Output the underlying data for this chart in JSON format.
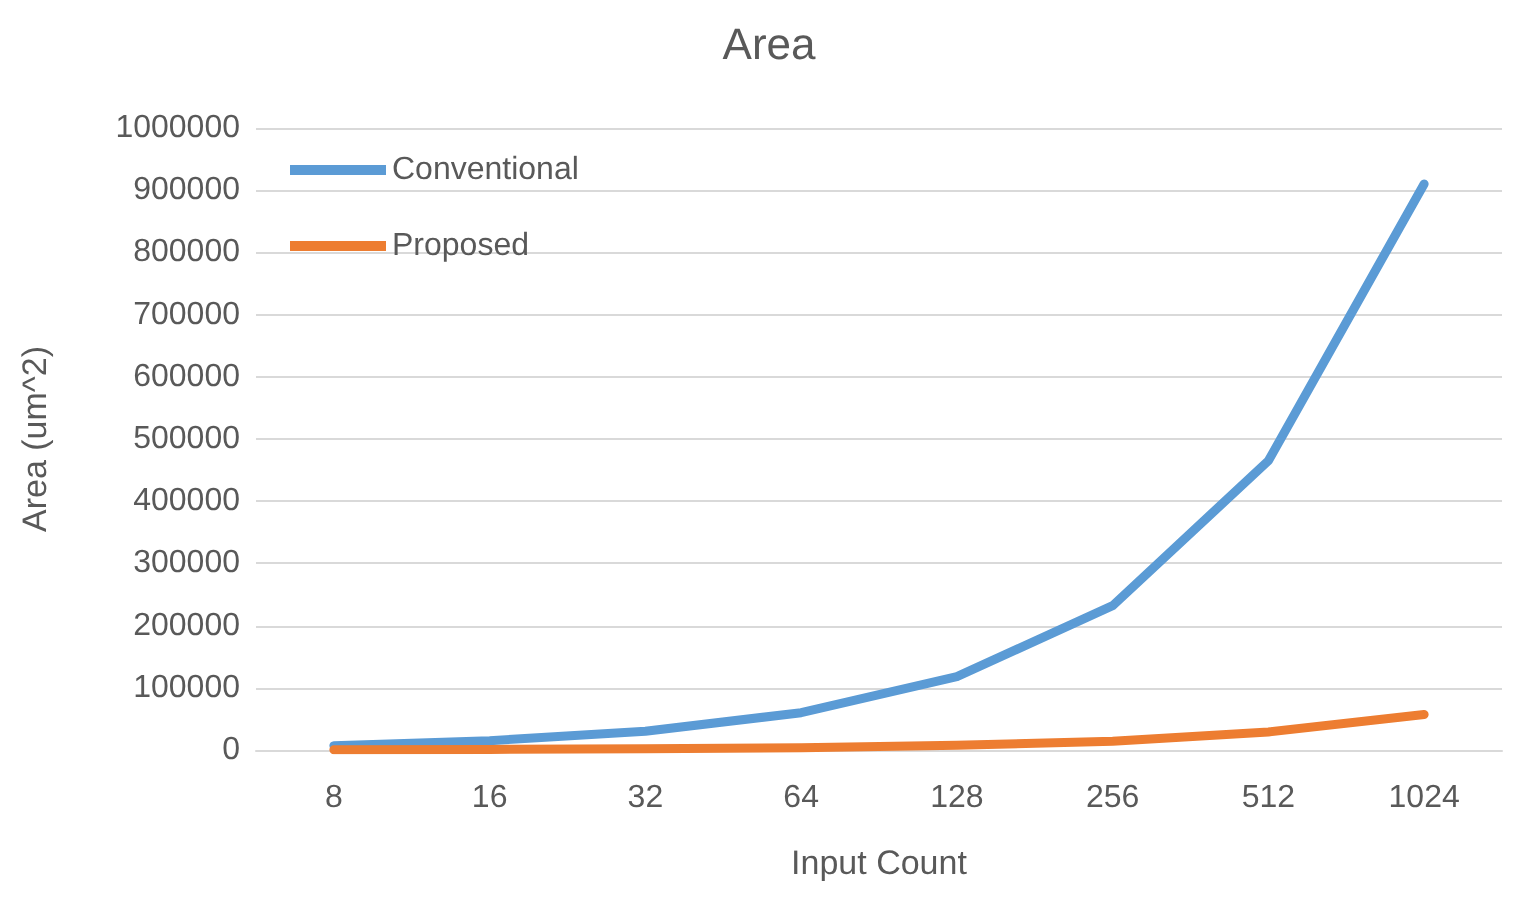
{
  "chart_data": {
    "type": "line",
    "title": "Area",
    "xlabel": "Input Count",
    "ylabel": "Area (um^2)",
    "categories": [
      "8",
      "16",
      "32",
      "64",
      "128",
      "256",
      "512",
      "1024"
    ],
    "series": [
      {
        "name": "Conventional",
        "color": "#5b9bd5",
        "values": [
          7000,
          15000,
          30000,
          60000,
          118000,
          232000,
          465000,
          910000
        ]
      },
      {
        "name": "Proposed",
        "color": "#ed7d31",
        "values": [
          500,
          1000,
          2000,
          3500,
          7500,
          14000,
          29000,
          57000
        ]
      }
    ],
    "ylim": [
      0,
      1000000
    ],
    "yticks": [
      0,
      100000,
      200000,
      300000,
      400000,
      500000,
      600000,
      700000,
      800000,
      900000,
      1000000
    ],
    "grid": "y",
    "legend": "top left",
    "marker": "none",
    "line_style": "solid"
  }
}
